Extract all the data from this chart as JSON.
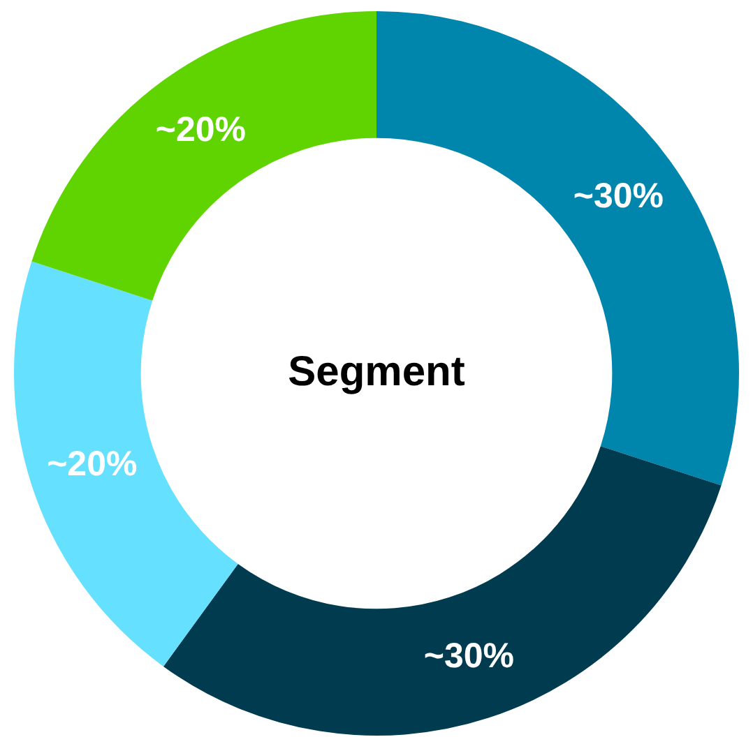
{
  "chart_data": {
    "type": "donut",
    "title": "Segment",
    "categories": [
      null,
      null,
      null,
      null
    ],
    "values": [
      30,
      30,
      20,
      20
    ],
    "colors": [
      "#0085ad",
      "#003b4f",
      "#66e0ff",
      "#5fd400"
    ],
    "value_labels": [
      "~30%",
      "~30%",
      "~20%",
      "~20%"
    ],
    "legend": false
  }
}
